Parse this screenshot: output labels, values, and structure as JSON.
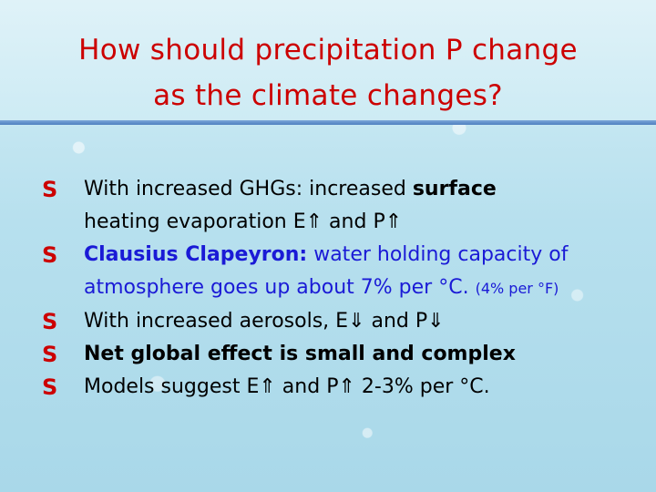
{
  "title": {
    "line1": "How should precipitation P change",
    "line2": "as the climate changes?"
  },
  "bullet_marker": "S",
  "icons": {
    "bullet": "bullet-s-icon",
    "up_arrow": "⇑",
    "down_arrow": "⇓"
  },
  "colors": {
    "title": "#cc0000",
    "accent_blue": "#1a1ad6",
    "rule": "#4f7fc0"
  },
  "bullets": [
    {
      "text_a": "With increased GHGs: increased ",
      "text_bold": "surface",
      "line2_a": "heating  evaporation E",
      "line2_b": " and P"
    },
    {
      "label": "Clausius Clapeyron:",
      "text_a": " water holding capacity of",
      "line2": "atmosphere goes up about 7% per °C.",
      "note": "(4% per °F)"
    },
    {
      "text_a": "With increased aerosols, E",
      "text_b": " and P"
    },
    {
      "text_bold": "Net global effect is small and complex"
    },
    {
      "text_a": "Models suggest E",
      "text_b": " and P",
      "text_c": "  2-3% per °C."
    }
  ]
}
